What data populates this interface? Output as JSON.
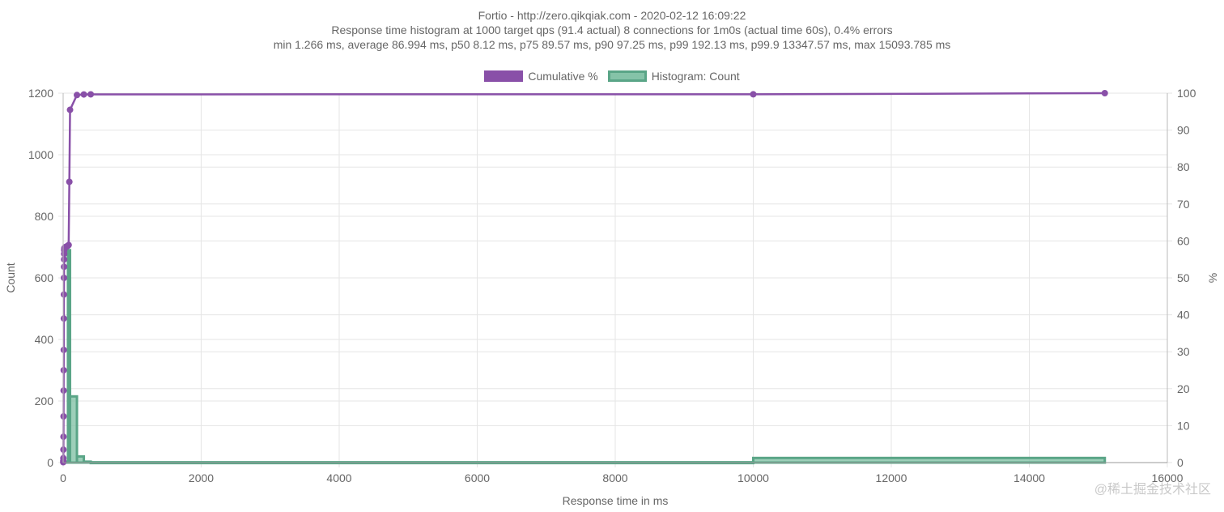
{
  "chart_data": {
    "type": "line",
    "title_lines": [
      "Fortio - http://zero.qikqiak.com - 2020-02-12 16:09:22",
      "Response time histogram at 1000 target qps (91.4 actual) 8 connections for 1m0s (actual time 60s), 0.4% errors",
      "min 1.266 ms, average 86.994 ms, p50 8.12 ms, p75 89.57 ms, p90 97.25 ms, p99 192.13 ms, p99.9 13347.57 ms, max 15093.785 ms"
    ],
    "xlabel": "Response time in ms",
    "ylabel_left": "Count",
    "ylabel_right": "%",
    "xlim": [
      0,
      16000
    ],
    "ylim_left": [
      0,
      1200
    ],
    "ylim_right": [
      0,
      100
    ],
    "x_ticks": [
      0,
      2000,
      4000,
      6000,
      8000,
      10000,
      12000,
      14000,
      16000
    ],
    "y_left_ticks": [
      0,
      200,
      400,
      600,
      800,
      1000,
      1200
    ],
    "y_right_ticks": [
      0,
      10,
      20,
      30,
      40,
      50,
      60,
      70,
      80,
      90,
      100
    ],
    "colors": {
      "cumulative": "#8950a8",
      "histogram": "#5aa587",
      "histogram_fill": "#85c3a8",
      "grid": "#e5e5e5"
    },
    "series": [
      {
        "name": "Cumulative %",
        "axis": "right",
        "points": [
          [
            1.3,
            0.1
          ],
          [
            2,
            0.5
          ],
          [
            3,
            1.2
          ],
          [
            4,
            3.5
          ],
          [
            5,
            7
          ],
          [
            6,
            12.5
          ],
          [
            7,
            19.5
          ],
          [
            8,
            25
          ],
          [
            9,
            30.5
          ],
          [
            10,
            39
          ],
          [
            11,
            45.5
          ],
          [
            12,
            50
          ],
          [
            13,
            53
          ],
          [
            14,
            55
          ],
          [
            15,
            56.5
          ],
          [
            16,
            57.5
          ],
          [
            18,
            58
          ],
          [
            20,
            58.1
          ],
          [
            25,
            58.2
          ],
          [
            30,
            58.3
          ],
          [
            40,
            58.4
          ],
          [
            50,
            58.5
          ],
          [
            60,
            58.6
          ],
          [
            70,
            58.7
          ],
          [
            80,
            58.9
          ],
          [
            90,
            76
          ],
          [
            100,
            95.5
          ],
          [
            200,
            99.5
          ],
          [
            300,
            99.65
          ],
          [
            400,
            99.68
          ],
          [
            10000,
            99.7
          ],
          [
            15093.785,
            100
          ]
        ]
      },
      {
        "name": "Histogram: Count",
        "axis": "left",
        "bins": [
          [
            0,
            70,
            3
          ],
          [
            70,
            100,
            690
          ],
          [
            100,
            200,
            215
          ],
          [
            200,
            300,
            20
          ],
          [
            300,
            400,
            3
          ],
          [
            400,
            10000,
            1
          ],
          [
            10000,
            15093.785,
            15
          ]
        ]
      }
    ]
  },
  "legend": {
    "cumulative_label": "Cumulative %",
    "histogram_label": "Histogram: Count"
  },
  "watermark": "@稀土掘金技术社区"
}
